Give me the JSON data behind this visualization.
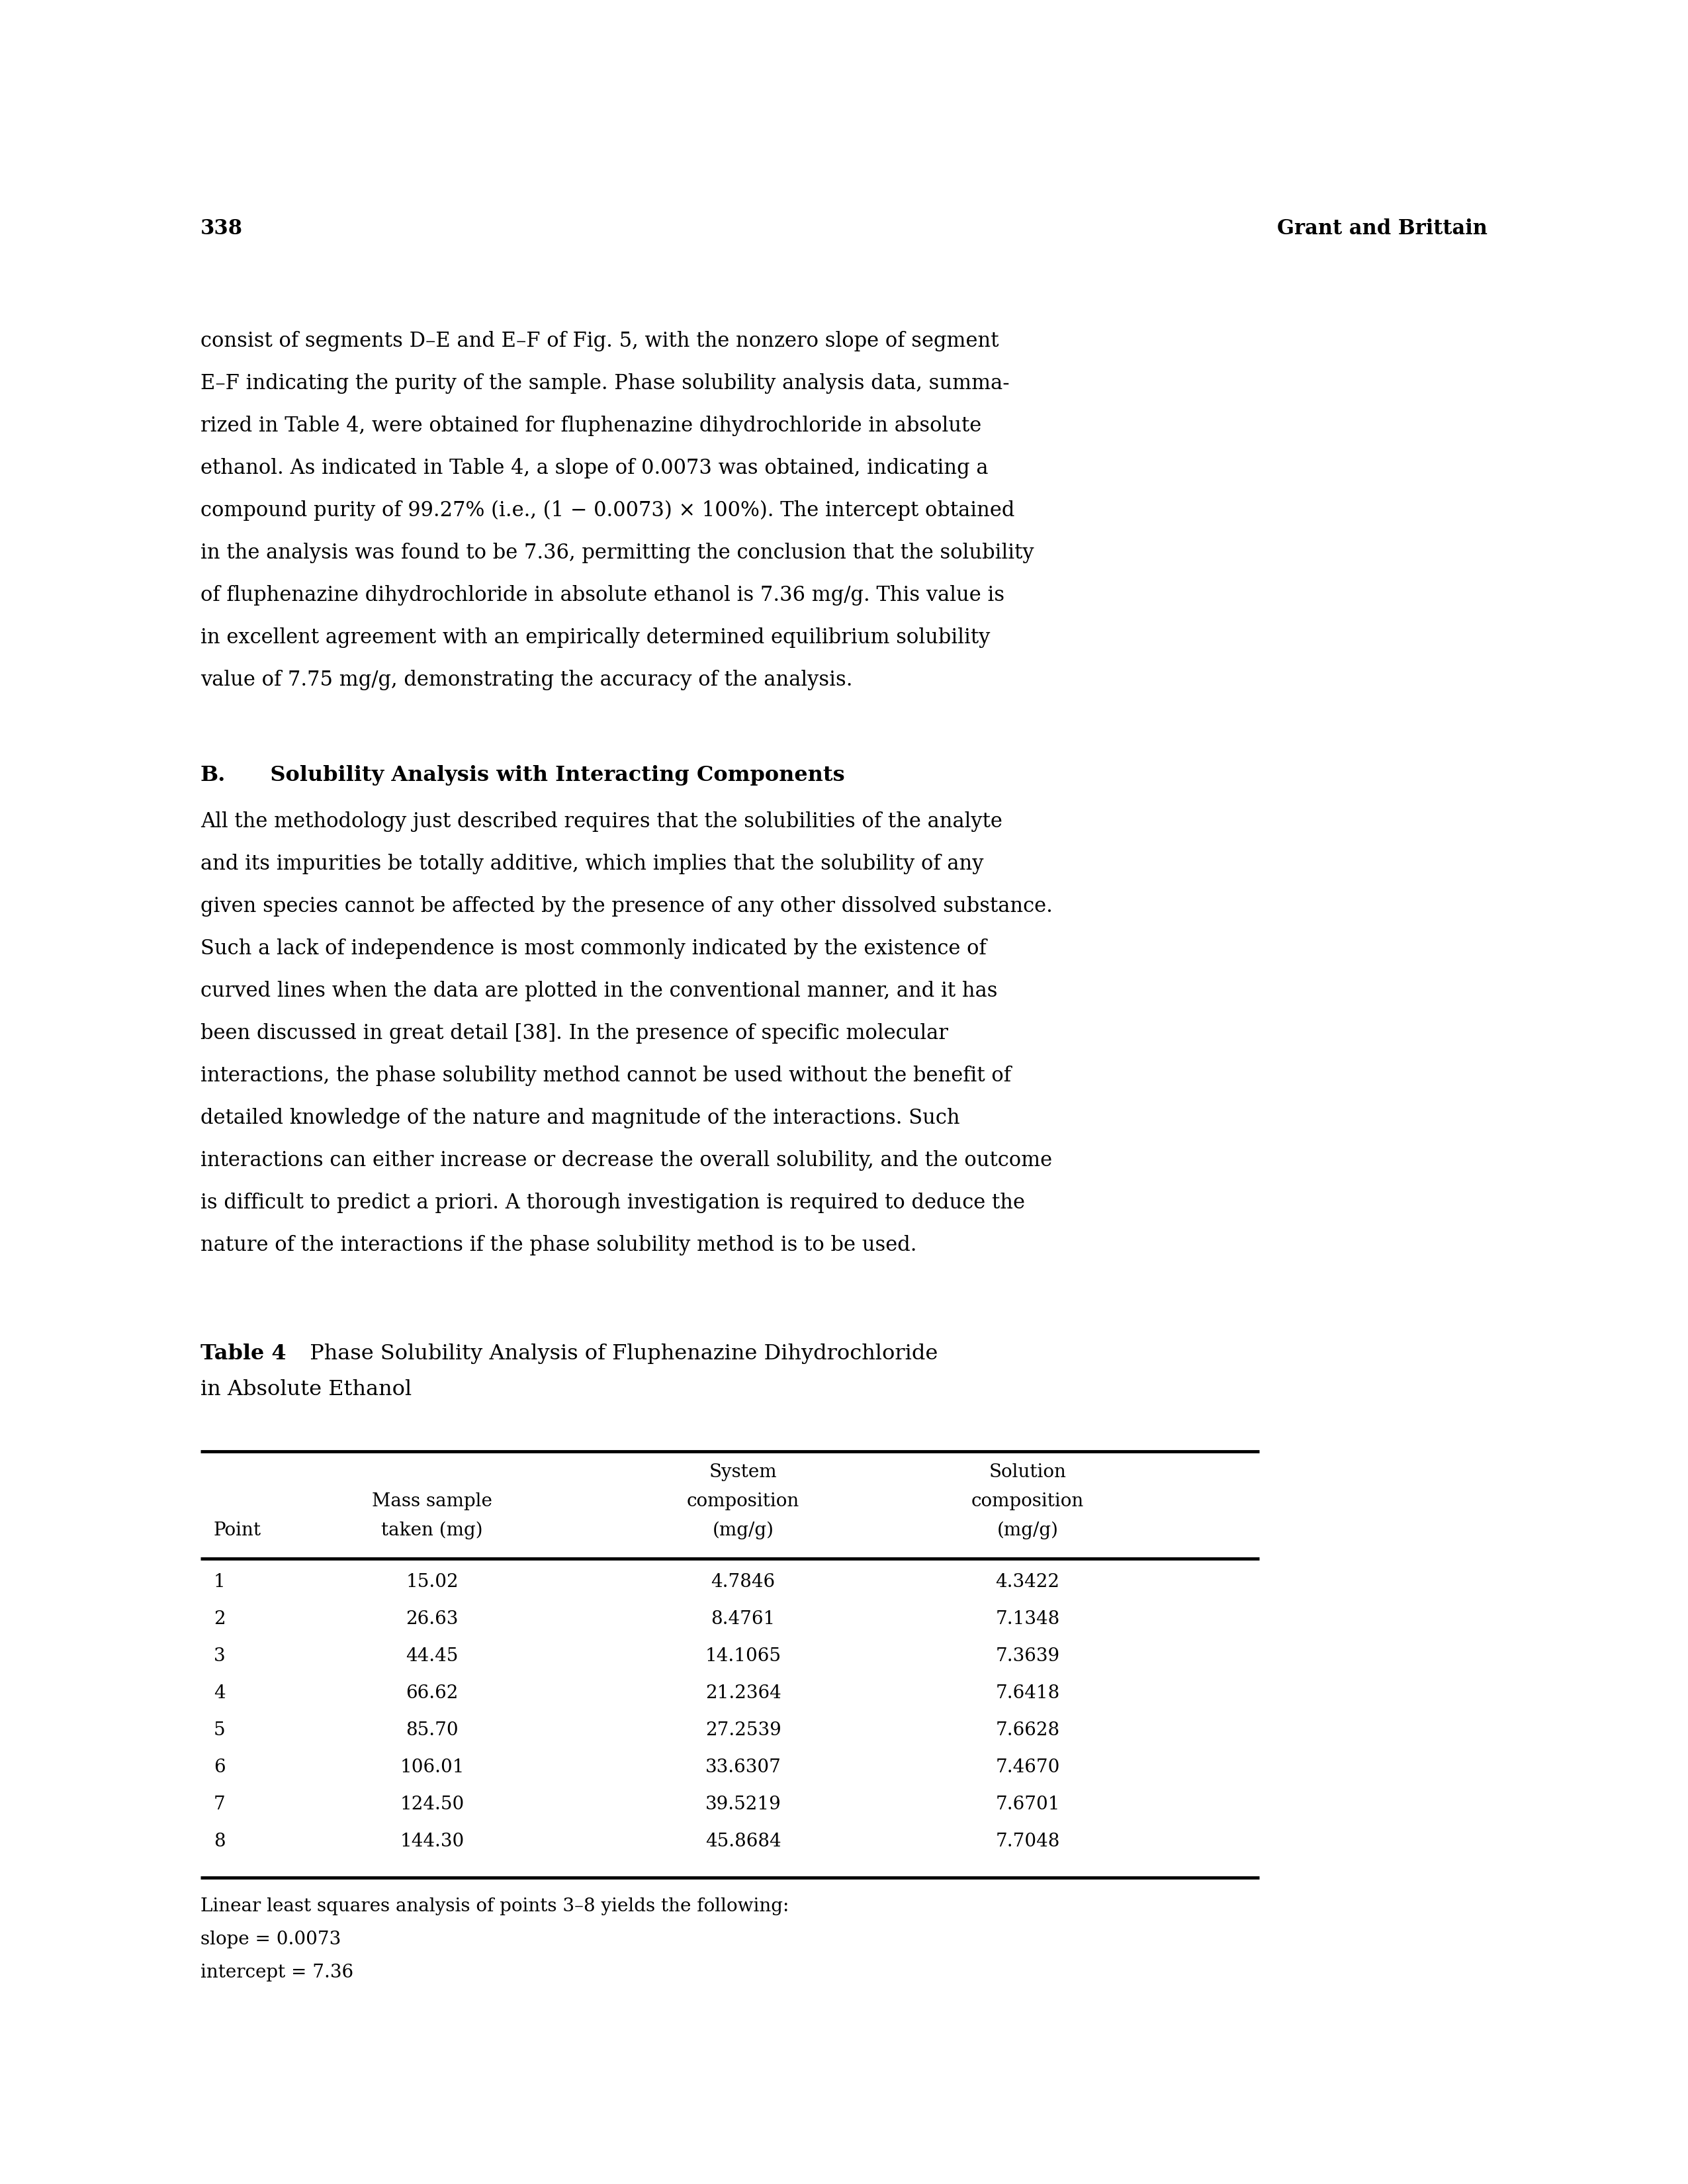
{
  "page_number": "338",
  "page_header_right": "Grant and Brittain",
  "body_text": [
    "consist of segments D–E and E–F of Fig. 5, with the nonzero slope of segment",
    "E–F indicating the purity of the sample. Phase solubility analysis data, summa-",
    "rized in Table 4, were obtained for fluphenazine dihydrochloride in absolute",
    "ethanol. As indicated in Table 4, a slope of 0.0073 was obtained, indicating a",
    "compound purity of 99.27% (i.e., (1 − 0.0073) × 100%). The intercept obtained",
    "in the analysis was found to be 7.36, permitting the conclusion that the solubility",
    "of fluphenazine dihydrochloride in absolute ethanol is 7.36 mg/g. This value is",
    "in excellent agreement with an empirically determined equilibrium solubility",
    "value of 7.75 mg/g, demonstrating the accuracy of the analysis."
  ],
  "section_title_B": "B.",
  "section_title_rest": "Solubility Analysis with Interacting Components",
  "section_text": [
    "All the methodology just described requires that the solubilities of the analyte",
    "and its impurities be totally additive, which implies that the solubility of any",
    "given species cannot be affected by the presence of any other dissolved substance.",
    "Such a lack of independence is most commonly indicated by the existence of",
    "curved lines when the data are plotted in the conventional manner, and it has",
    "been discussed in great detail [38]. In the presence of specific molecular",
    "interactions, the phase solubility method cannot be used without the benefit of",
    "detailed knowledge of the nature and magnitude of the interactions. Such",
    "interactions can either increase or decrease the overall solubility, and the outcome",
    "is difficult to predict a priori. A thorough investigation is required to deduce the",
    "nature of the interactions if the phase solubility method is to be used."
  ],
  "table_title_bold": "Table 4",
  "table_title_rest": "Phase Solubility Analysis of Fluphenazine Dihydrochloride",
  "table_title_line2": "in Absolute Ethanol",
  "table_data": [
    [
      "1",
      "15.02",
      "4.7846",
      "4.3422"
    ],
    [
      "2",
      "26.63",
      "8.4761",
      "7.1348"
    ],
    [
      "3",
      "44.45",
      "14.1065",
      "7.3639"
    ],
    [
      "4",
      "66.62",
      "21.2364",
      "7.6418"
    ],
    [
      "5",
      "85.70",
      "27.2539",
      "7.6628"
    ],
    [
      "6",
      "106.01",
      "33.6307",
      "7.4670"
    ],
    [
      "7",
      "124.50",
      "39.5219",
      "7.6701"
    ],
    [
      "8",
      "144.30",
      "45.8684",
      "7.7048"
    ]
  ],
  "table_footnote": [
    "Linear least squares analysis of points 3–8 yields the following:",
    "slope = 0.0073",
    "intercept = 7.36"
  ],
  "background_color": "#ffffff"
}
